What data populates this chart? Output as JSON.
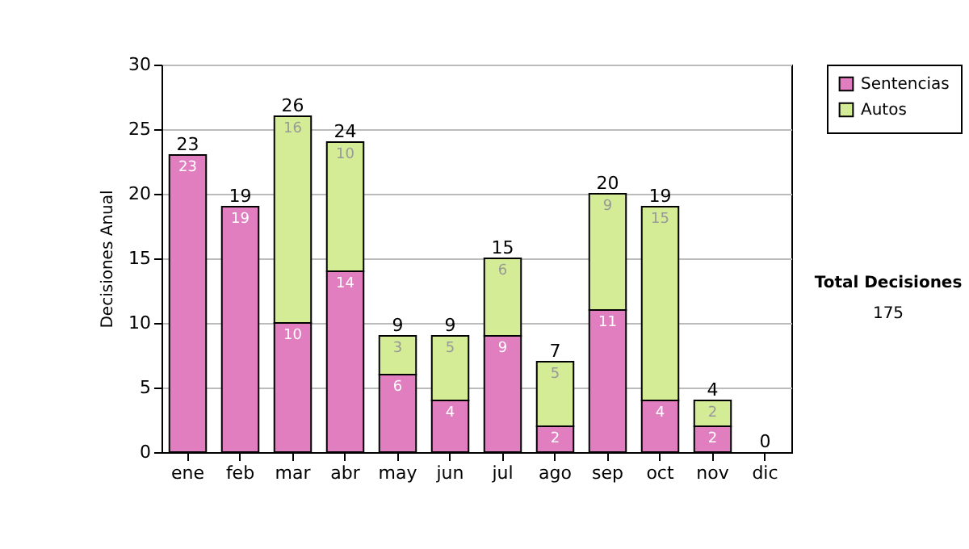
{
  "chart_data": {
    "type": "bar",
    "stacked": true,
    "ylabel": "Decisiones Anual",
    "categories": [
      "ene",
      "feb",
      "mar",
      "abr",
      "may",
      "jun",
      "jul",
      "ago",
      "sep",
      "oct",
      "nov",
      "dic"
    ],
    "series": [
      {
        "name": "Sentencias",
        "color": "#e07ec0",
        "values": [
          23,
          19,
          10,
          14,
          6,
          4,
          9,
          2,
          11,
          4,
          2,
          0
        ],
        "value_labels": [
          "23",
          "19",
          "10",
          "14",
          "6",
          "4",
          "9",
          "2",
          "11",
          "4",
          "2",
          null
        ]
      },
      {
        "name": "Autos",
        "color": "#d4ec96",
        "values": [
          0,
          0,
          16,
          10,
          3,
          5,
          6,
          5,
          9,
          15,
          2,
          0
        ],
        "value_labels": [
          null,
          null,
          "16",
          "10",
          "3",
          "5",
          "6",
          "5",
          "9",
          "15",
          "2",
          null
        ]
      }
    ],
    "totals": [
      "23",
      "19",
      "26",
      "24",
      "9",
      "9",
      "15",
      "7",
      "20",
      "19",
      "4",
      "0"
    ],
    "ylim": [
      0,
      30
    ],
    "yticks": [
      0,
      5,
      10,
      15,
      20,
      25,
      30
    ],
    "grid": "y",
    "legend": "right",
    "annotations": [
      "Total Decisiones",
      "175"
    ]
  }
}
